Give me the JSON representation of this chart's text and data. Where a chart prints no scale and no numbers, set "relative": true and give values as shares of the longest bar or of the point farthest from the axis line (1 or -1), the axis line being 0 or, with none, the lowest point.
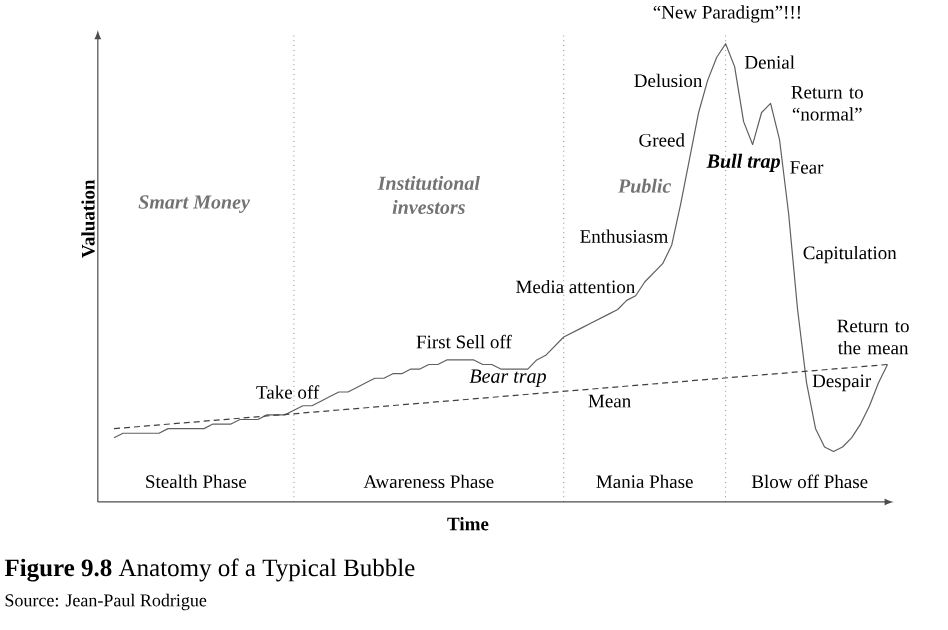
{
  "chart_data": {
    "type": "line",
    "relative": true,
    "title": "**Figure 9.8**    Anatomy of a Typical Bubble",
    "xlabel": "Time",
    "grid": "x",
    "ylabel": "Valuation",
    "categories": [
      null,
      null,
      null,
      null,
      null,
      null,
      null,
      null,
      null,
      null,
      null,
      null,
      null,
      null,
      null,
      null,
      null,
      null,
      null,
      null,
      null,
      null,
      null,
      null,
      null,
      null,
      null,
      null,
      null,
      null,
      null,
      null,
      null,
      null,
      null,
      null,
      null,
      null,
      null,
      null,
      null,
      null,
      null,
      null,
      null,
      null,
      null,
      null,
      null,
      null,
      null,
      null,
      null,
      null,
      null,
      null,
      null,
      null,
      null,
      null,
      null,
      null,
      null,
      null,
      null,
      null,
      null,
      null,
      null,
      null,
      null,
      null,
      null,
      null,
      null,
      null,
      null,
      null,
      null,
      null,
      null,
      null,
      null,
      null,
      null,
      null,
      null
    ],
    "series": [
      {
        "color": "#606060",
        "line_style": "solid",
        "values": [
          0.14,
          0.15,
          0.15,
          0.15,
          0.15,
          0.15,
          0.16,
          0.16,
          0.16,
          0.16,
          0.16,
          0.17,
          0.17,
          0.17,
          0.18,
          0.18,
          0.18,
          0.19,
          0.19,
          0.19,
          0.2,
          0.21,
          0.21,
          0.22,
          0.23,
          0.24,
          0.24,
          0.25,
          0.26,
          0.27,
          0.27,
          0.28,
          0.28,
          0.29,
          0.29,
          0.3,
          0.3,
          0.31,
          0.31,
          0.31,
          0.31,
          0.3,
          0.3,
          0.29,
          0.29,
          0.29,
          0.29,
          0.31,
          0.32,
          0.34,
          0.36,
          0.37,
          0.38,
          0.39,
          0.4,
          0.41,
          0.42,
          0.44,
          0.45,
          0.48,
          0.5,
          0.52,
          0.56,
          0.65,
          0.75,
          0.85,
          0.92,
          0.97,
          1,
          0.95,
          0.83,
          0.78,
          0.85,
          0.87,
          0.79,
          0.63,
          0.42,
          0.26,
          0.16,
          0.12,
          0.11,
          0.12,
          0.14,
          0.17,
          0.21,
          0.26,
          0.3
        ]
      },
      {
        "color": "#404040",
        "line_style": "dashed",
        "values": [
          0.16,
          null,
          null,
          null,
          null,
          null,
          null,
          null,
          null,
          null,
          null,
          null,
          null,
          null,
          null,
          null,
          null,
          null,
          null,
          null,
          null,
          null,
          null,
          null,
          null,
          null,
          null,
          null,
          null,
          null,
          null,
          null,
          null,
          null,
          null,
          null,
          null,
          null,
          null,
          null,
          null,
          null,
          null,
          null,
          null,
          null,
          null,
          null,
          null,
          null,
          null,
          null,
          null,
          null,
          null,
          null,
          null,
          null,
          null,
          null,
          null,
          null,
          null,
          null,
          null,
          null,
          null,
          null,
          null,
          null,
          null,
          null,
          null,
          null,
          null,
          null,
          null,
          null,
          null,
          null,
          null,
          null,
          null,
          null,
          null,
          null,
          0.3
        ]
      }
    ],
    "annotations": [
      "Take off",
      "First Sell off",
      "Bear trap",
      "Media attention",
      "Enthusiasm",
      "Greed",
      "Delusion",
      "“New Paradigm”!!!",
      "Denial",
      "Bull trap",
      "Return to “normal”",
      "Fear",
      "Capitulation",
      "Despair",
      "Return to the mean",
      "Mean",
      "Smart Money",
      "Institutional investors",
      "Public",
      "Stealth Phase",
      "Awareness Phase",
      "Mania Phase",
      "Blow off Phase",
      "Source: Jean-Paul Rodrigue"
    ]
  }
}
